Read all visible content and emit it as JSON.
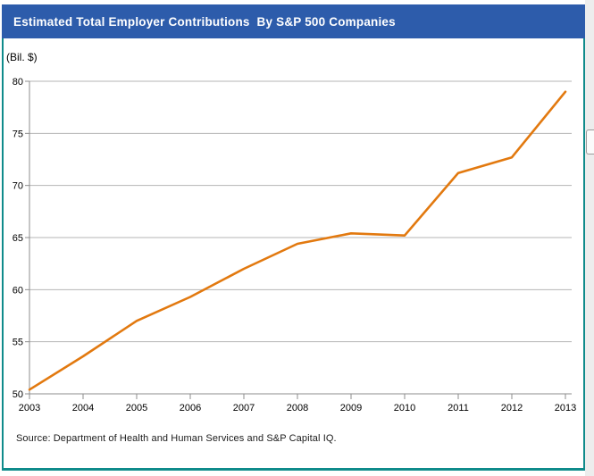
{
  "header": {
    "title": "Estimated Total Employer Contributions  By S&P 500 Companies",
    "bg_color": "#2d5cab",
    "text_color": "#ffffff"
  },
  "frame_color": "#0f8b8b",
  "chart_data": {
    "type": "line",
    "title": "Estimated Total Employer Contributions  By S&P 500 Companies",
    "unit_label": "(Bil. $)",
    "xlabel": "",
    "ylabel": "(Bil. $)",
    "x": [
      2003,
      2004,
      2005,
      2006,
      2007,
      2008,
      2009,
      2010,
      2011,
      2012,
      2013
    ],
    "values": [
      50.4,
      53.6,
      57.0,
      59.3,
      62.0,
      64.4,
      65.4,
      65.2,
      71.2,
      72.7,
      79.0
    ],
    "ylim": [
      50,
      80
    ],
    "yticks": [
      50,
      55,
      60,
      65,
      70,
      75,
      80
    ],
    "grid": true,
    "legend": "none",
    "line_color": "#e2790f",
    "gridline_color": "#b4b4b4",
    "axis_color": "#8c8c8c",
    "source": "Source: Department of Health and Human Services and S&P Capital IQ."
  }
}
